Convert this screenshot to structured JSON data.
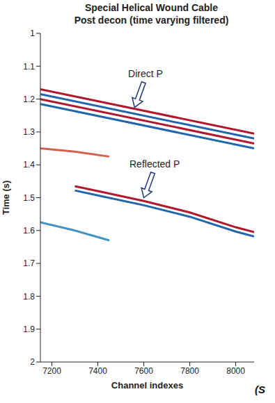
{
  "chart_data": {
    "type": "line",
    "title": "Special Helical Wound Cable",
    "subtitle": "Post decon (time varying filtered)",
    "x_label": "Channel indexes",
    "y_label": "Time (s)",
    "xlim": [
      7150,
      8080
    ],
    "xticks": [
      7200,
      7400,
      7600,
      7800,
      8000
    ],
    "ylim": [
      1,
      2
    ],
    "yticks": [
      1,
      1.1,
      1.2,
      1.3,
      1.4,
      1.5,
      1.6,
      1.7,
      1.8,
      1.9,
      2
    ],
    "grid": false,
    "series": [
      {
        "color": "#b2182b",
        "x": [
          7150,
          8080
        ],
        "values": [
          1.17,
          1.305
        ]
      },
      {
        "color": "#2166ac",
        "x": [
          7150,
          8080
        ],
        "values": [
          1.185,
          1.32
        ]
      },
      {
        "color": "#b2182b",
        "x": [
          7150,
          8080
        ],
        "values": [
          1.2,
          1.335
        ]
      },
      {
        "color": "#2166ac",
        "x": [
          7150,
          8080
        ],
        "values": [
          1.215,
          1.35
        ]
      },
      {
        "color": "#b2182b",
        "x": [
          7300,
          7400,
          7600,
          7800,
          8000,
          8080
        ],
        "values": [
          1.465,
          1.48,
          1.51,
          1.545,
          1.59,
          1.605
        ]
      },
      {
        "color": "#2166ac",
        "x": [
          7300,
          7400,
          7600,
          7800,
          8000,
          8080
        ],
        "values": [
          1.478,
          1.493,
          1.523,
          1.558,
          1.603,
          1.618
        ]
      },
      {
        "color": "#d6604d",
        "x": [
          7150,
          7300,
          7450
        ],
        "values": [
          1.35,
          1.36,
          1.375
        ]
      },
      {
        "color": "#4393c3",
        "x": [
          7150,
          7300,
          7450
        ],
        "values": [
          1.575,
          1.6,
          1.63
        ]
      }
    ],
    "annotations": [
      {
        "text": "Direct P",
        "x": 7560,
        "y": 1.225
      },
      {
        "text": "Reflected P",
        "x": 7600,
        "y": 1.5
      }
    ],
    "corner_text": "(S"
  }
}
